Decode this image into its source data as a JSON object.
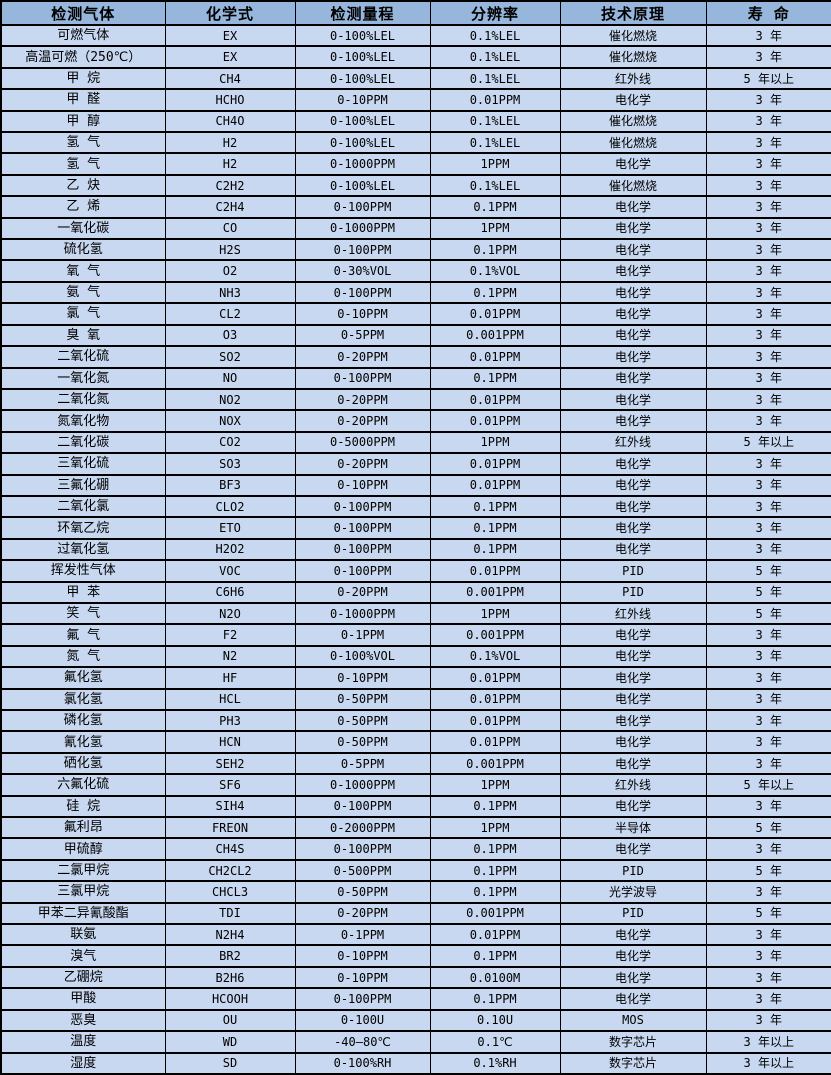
{
  "table": {
    "headers": [
      "检测气体",
      "化学式",
      "检测量程",
      "分辨率",
      "技术原理",
      "寿 命"
    ],
    "column_names": [
      "gas-name",
      "chemical-formula",
      "detection-range",
      "resolution",
      "technology-principle",
      "lifespan"
    ],
    "rows": [
      [
        "可燃气体",
        "EX",
        "0-100%LEL",
        "0.1%LEL",
        "催化燃烧",
        "3 年"
      ],
      [
        "高温可燃（250℃）",
        "EX",
        "0-100%LEL",
        "0.1%LEL",
        "催化燃烧",
        "3 年"
      ],
      [
        "甲 烷",
        "CH4",
        "0-100%LEL",
        "0.1%LEL",
        "红外线",
        "5 年以上"
      ],
      [
        "甲 醛",
        "HCHO",
        "0-10PPM",
        "0.01PPM",
        "电化学",
        "3 年"
      ],
      [
        "甲 醇",
        "CH4O",
        "0-100%LEL",
        "0.1%LEL",
        "催化燃烧",
        "3 年"
      ],
      [
        "氢 气",
        "H2",
        "0-100%LEL",
        "0.1%LEL",
        "催化燃烧",
        "3 年"
      ],
      [
        "氢 气",
        "H2",
        "0-1000PPM",
        "1PPM",
        "电化学",
        "3 年"
      ],
      [
        "乙 炔",
        "C2H2",
        "0-100%LEL",
        "0.1%LEL",
        "催化燃烧",
        "3 年"
      ],
      [
        "乙 烯",
        "C2H4",
        "0-100PPM",
        "0.1PPM",
        "电化学",
        "3 年"
      ],
      [
        "一氧化碳",
        "CO",
        "0-1000PPM",
        "1PPM",
        "电化学",
        "3 年"
      ],
      [
        "硫化氢",
        "H2S",
        "0-100PPM",
        "0.1PPM",
        "电化学",
        "3 年"
      ],
      [
        "氧 气",
        "O2",
        "0-30%VOL",
        "0.1%VOL",
        "电化学",
        "3 年"
      ],
      [
        "氨 气",
        "NH3",
        "0-100PPM",
        "0.1PPM",
        "电化学",
        "3 年"
      ],
      [
        "氯 气",
        "CL2",
        "0-10PPM",
        "0.01PPM",
        "电化学",
        "3 年"
      ],
      [
        "臭 氧",
        "O3",
        "0-5PPM",
        "0.001PPM",
        "电化学",
        "3 年"
      ],
      [
        "二氧化硫",
        "SO2",
        "0-20PPM",
        "0.01PPM",
        "电化学",
        "3 年"
      ],
      [
        "一氧化氮",
        "NO",
        "0-100PPM",
        "0.1PPM",
        "电化学",
        "3 年"
      ],
      [
        "二氧化氮",
        "NO2",
        "0-20PPM",
        "0.01PPM",
        "电化学",
        "3 年"
      ],
      [
        "氮氧化物",
        "NOX",
        "0-20PPM",
        "0.01PPM",
        "电化学",
        "3 年"
      ],
      [
        "二氧化碳",
        "CO2",
        "0-5000PPM",
        "1PPM",
        "红外线",
        "5 年以上"
      ],
      [
        "三氧化硫",
        "SO3",
        "0-20PPM",
        "0.01PPM",
        "电化学",
        "3 年"
      ],
      [
        "三氟化硼",
        "BF3",
        "0-10PPM",
        "0.01PPM",
        "电化学",
        "3 年"
      ],
      [
        "二氧化氯",
        "CLO2",
        "0-100PPM",
        "0.1PPM",
        "电化学",
        "3 年"
      ],
      [
        "环氧乙烷",
        "ETO",
        "0-100PPM",
        "0.1PPM",
        "电化学",
        "3 年"
      ],
      [
        "过氧化氢",
        "H2O2",
        "0-100PPM",
        "0.1PPM",
        "电化学",
        "3 年"
      ],
      [
        "挥发性气体",
        "VOC",
        "0-100PPM",
        "0.01PPM",
        "PID",
        "5 年"
      ],
      [
        "甲 苯",
        "C6H6",
        "0-20PPM",
        "0.001PPM",
        "PID",
        "5 年"
      ],
      [
        "笑 气",
        "N2O",
        "0-1000PPM",
        "1PPM",
        "红外线",
        "5 年"
      ],
      [
        "氟 气",
        "F2",
        "0-1PPM",
        "0.001PPM",
        "电化学",
        "3 年"
      ],
      [
        "氮 气",
        "N2",
        "0-100%VOL",
        "0.1%VOL",
        "电化学",
        "3 年"
      ],
      [
        "氟化氢",
        "HF",
        "0-10PPM",
        "0.01PPM",
        "电化学",
        "3 年"
      ],
      [
        "氯化氢",
        "HCL",
        "0-50PPM",
        "0.01PPM",
        "电化学",
        "3 年"
      ],
      [
        "磷化氢",
        "PH3",
        "0-50PPM",
        "0.01PPM",
        "电化学",
        "3 年"
      ],
      [
        "氰化氢",
        "HCN",
        "0-50PPM",
        "0.01PPM",
        "电化学",
        "3 年"
      ],
      [
        "硒化氢",
        "SEH2",
        "0-5PPM",
        "0.001PPM",
        "电化学",
        "3 年"
      ],
      [
        "六氟化硫",
        "SF6",
        "0-1000PPM",
        "1PPM",
        "红外线",
        "5 年以上"
      ],
      [
        "硅 烷",
        "SIH4",
        "0-100PPM",
        "0.1PPM",
        "电化学",
        "3 年"
      ],
      [
        "氟利昂",
        "FREON",
        "0-2000PPM",
        "1PPM",
        "半导体",
        "5 年"
      ],
      [
        "甲硫醇",
        "CH4S",
        "0-100PPM",
        "0.1PPM",
        "电化学",
        "3 年"
      ],
      [
        "二氯甲烷",
        "CH2CL2",
        "0-500PPM",
        "0.1PPM",
        "PID",
        "5 年"
      ],
      [
        "三氯甲烷",
        "CHCL3",
        "0-50PPM",
        "0.1PPM",
        "光学波导",
        "3 年"
      ],
      [
        "甲苯二异氰酸酯",
        "TDI",
        "0-20PPM",
        "0.001PPM",
        "PID",
        "5 年"
      ],
      [
        "联氨",
        "N2H4",
        "0-1PPM",
        "0.01PPM",
        "电化学",
        "3 年"
      ],
      [
        "溴气",
        "BR2",
        "0-10PPM",
        "0.1PPM",
        "电化学",
        "3 年"
      ],
      [
        "乙硼烷",
        "B2H6",
        "0-10PPM",
        "0.0100M",
        "电化学",
        "3 年"
      ],
      [
        "甲酸",
        "HCOOH",
        "0-100PPM",
        "0.1PPM",
        "电化学",
        "3 年"
      ],
      [
        "恶臭",
        "OU",
        "0-100U",
        "0.10U",
        "MOS",
        "3 年"
      ],
      [
        "温度",
        "WD",
        "-40—80℃",
        "0.1℃",
        "数字芯片",
        "3 年以上"
      ],
      [
        "湿度",
        "SD",
        "0-100%RH",
        "0.1%RH",
        "数字芯片",
        "3 年以上"
      ]
    ]
  },
  "colors": {
    "header_bg": "#96b6dc",
    "row_bg": "#c8d8f0",
    "border": "#000000",
    "text": "#000000"
  }
}
